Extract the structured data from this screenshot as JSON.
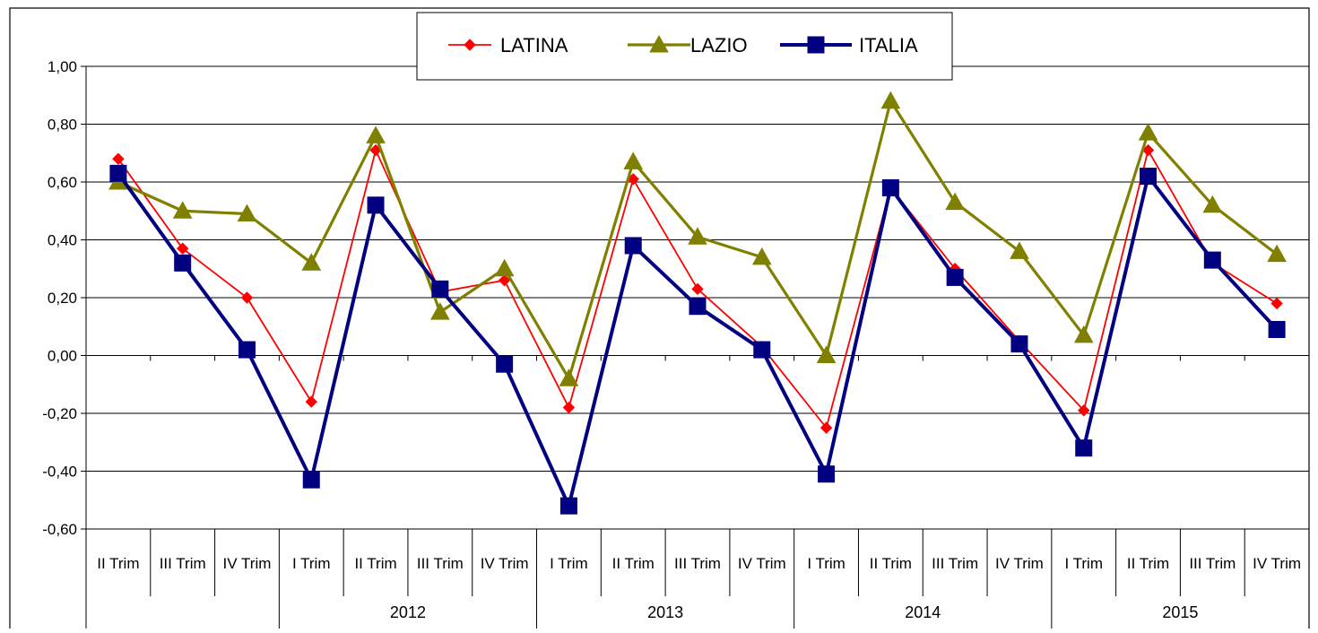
{
  "chart_data": {
    "type": "line",
    "title": "",
    "xlabel": "",
    "ylabel": "",
    "ylim": [
      -0.6,
      1.0
    ],
    "ytick_values": [
      1.0,
      0.8,
      0.6,
      0.4,
      0.2,
      0.0,
      -0.2,
      -0.4,
      -0.6
    ],
    "ytick_labels": [
      "1,00",
      "0,80",
      "0,60",
      "0,40",
      "0,20",
      "0,00",
      "-0,20",
      "-0,40",
      "-0,60"
    ],
    "grid": "horizontal",
    "legend_position": "top-center",
    "categories": [
      "II Trim",
      "III Trim",
      "IV  Trim",
      "I Trim",
      "II Trim",
      "III Trim",
      "IV  Trim",
      "I Trim",
      "II Trim",
      "III Trim",
      "IV  Trim",
      "I Trim",
      "II Trim",
      "III Trim",
      "IV  Trim",
      "I Trim",
      "II Trim",
      "III Trim",
      "IV  Trim"
    ],
    "year_groups": [
      {
        "label": "",
        "start": 0,
        "count": 3
      },
      {
        "label": "2012",
        "start": 3,
        "count": 4
      },
      {
        "label": "2013",
        "start": 7,
        "count": 4
      },
      {
        "label": "2014",
        "start": 11,
        "count": 4
      },
      {
        "label": "2015",
        "start": 15,
        "count": 4
      }
    ],
    "series": [
      {
        "name": "LATINA",
        "color": "#ff0000",
        "marker": "diamond",
        "values": [
          0.68,
          0.37,
          0.2,
          -0.16,
          0.71,
          0.22,
          0.26,
          -0.18,
          0.61,
          0.23,
          0.03,
          -0.25,
          0.58,
          0.3,
          0.05,
          -0.19,
          0.71,
          0.32,
          0.18
        ]
      },
      {
        "name": "LAZIO",
        "color": "#808000",
        "marker": "triangle",
        "values": [
          0.6,
          0.5,
          0.49,
          0.32,
          0.76,
          0.15,
          0.3,
          -0.08,
          0.67,
          0.41,
          0.34,
          0.0,
          0.88,
          0.53,
          0.36,
          0.07,
          0.77,
          0.52,
          0.35
        ]
      },
      {
        "name": "ITALIA",
        "color": "#000080",
        "marker": "square",
        "values": [
          0.63,
          0.32,
          0.02,
          -0.43,
          0.52,
          0.23,
          -0.03,
          -0.52,
          0.38,
          0.17,
          0.02,
          -0.41,
          0.58,
          0.27,
          0.04,
          -0.32,
          0.62,
          0.33,
          0.09
        ]
      }
    ]
  }
}
